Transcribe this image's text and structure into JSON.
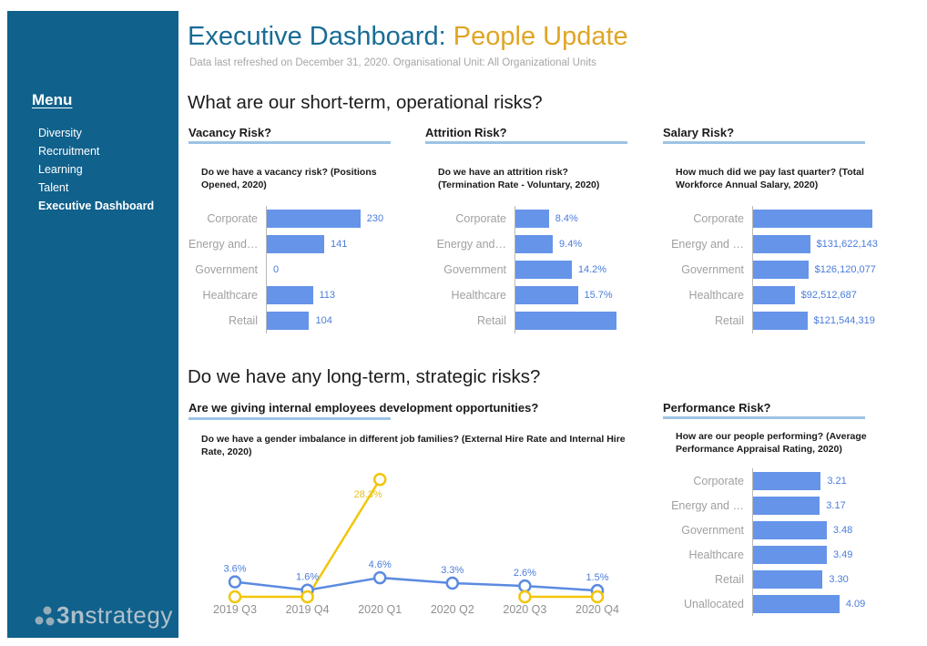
{
  "header": {
    "title_main": "Executive Dashboard: ",
    "title_accent": "People Update",
    "subtitle": "Data last refreshed on December 31, 2020. Organisational Unit: All Organizational Units"
  },
  "sidebar": {
    "menu_label": "Menu",
    "items": [
      {
        "label": "Diversity",
        "active": false
      },
      {
        "label": "Recruitment",
        "active": false
      },
      {
        "label": "Learning",
        "active": false
      },
      {
        "label": "Talent",
        "active": false
      },
      {
        "label": "Executive Dashboard",
        "active": true
      }
    ],
    "logo": {
      "bold": "3n",
      "light": "strategy"
    }
  },
  "sections": {
    "short_term": "What are our short-term, operational risks?",
    "long_term": "Do we have any long-term, strategic risks?"
  },
  "colors": {
    "sidebar_bg": "#10618C",
    "title_blue": "#186C96",
    "title_gold": "#DFA524",
    "bar_blue": "#6594E9",
    "value_label_blue": "#4A7CDB",
    "underline_blue": "#9DC3E6",
    "line_blue": "#5B8BE0",
    "line_yellow": "#F2C50A",
    "category_gray": "#A0A0A0"
  },
  "chart_data": {
    "vacancy": {
      "type": "bar",
      "title": "Vacancy Risk?",
      "subtitle": "Do we have a vacancy risk? (Positions Opened, 2020)",
      "categories": [
        "Corporate",
        "Energy and…",
        "Government",
        "Healthcare",
        "Retail"
      ],
      "values": [
        230,
        141,
        0,
        113,
        104
      ],
      "value_labels": [
        "230",
        "141",
        "0",
        "113",
        "104"
      ],
      "bar_pcts": [
        69,
        42.3,
        0,
        33.9,
        31.2
      ]
    },
    "attrition": {
      "type": "bar",
      "title": "Attrition Risk?",
      "subtitle": "Do we have an attrition risk? (Termination Rate - Voluntary, 2020)",
      "categories": [
        "Corporate",
        "Energy and…",
        "Government",
        "Healthcare",
        "Retail"
      ],
      "values": [
        8.4,
        9.4,
        14.2,
        15.7,
        null
      ],
      "value_labels": [
        "8.4%",
        "9.4%",
        "14.2%",
        "15.7%",
        ""
      ],
      "bar_pcts": [
        32.2,
        36,
        54.3,
        60.1,
        97.4
      ]
    },
    "salary": {
      "type": "bar",
      "title": "Salary Risk?",
      "subtitle": "How much did we pay last quarter? (Total Workforce Annual Salary, 2020)",
      "categories": [
        "Corporate",
        "Energy and …",
        "Government",
        "Healthcare",
        "Retail"
      ],
      "values": [
        null,
        131622143,
        126120077,
        92512687,
        121544319
      ],
      "value_labels": [
        "",
        "$131,622,143",
        "$126,120,077",
        "$92,512,687",
        "$121,544,319"
      ],
      "bar_pcts": [
        99.2,
        47.4,
        45.9,
        34.6,
        45.1
      ]
    },
    "development": {
      "type": "line",
      "title": "Are we giving internal employees development opportunities?",
      "subtitle": "Do we have a gender imbalance in different job families? (External Hire Rate and Internal Hire Rate, 2020)",
      "x_labels": [
        "2019 Q3",
        "2019 Q4",
        "2020 Q1",
        "2020 Q2",
        "2020 Q3",
        "2020 Q4"
      ],
      "series": [
        {
          "name": "hire-rate-blue",
          "color": "#5B8BE0",
          "label_color": "#4A7CDB",
          "label_pos": "above",
          "values": [
            3.6,
            1.6,
            4.6,
            3.3,
            2.6,
            1.5
          ],
          "labels": [
            "3.6%",
            "1.6%",
            "4.6%",
            "3.3%",
            "2.6%",
            "1.5%"
          ]
        },
        {
          "name": "hire-rate-yellow",
          "color": "#F2C50A",
          "label_color": "#E8BE1C",
          "label_pos": "below",
          "values": [
            0,
            0,
            28.3,
            null,
            0,
            0
          ],
          "labels": [
            "",
            "",
            "28.3%",
            "",
            "",
            ""
          ]
        }
      ]
    },
    "performance": {
      "type": "bar",
      "title": "Performance Risk?",
      "subtitle": "How are our people performing? (Average Performance Appraisal Rating, 2020)",
      "categories": [
        "Corporate",
        "Energy and …",
        "Government",
        "Healthcare",
        "Retail",
        "Unallocated"
      ],
      "values": [
        3.21,
        3.17,
        3.48,
        3.49,
        3.3,
        4.09
      ],
      "value_labels": [
        "3.21",
        "3.17",
        "3.48",
        "3.49",
        "3.30",
        "4.09"
      ],
      "bar_pcts": [
        65.2,
        64.3,
        70.9,
        71,
        67,
        83.2
      ]
    }
  }
}
